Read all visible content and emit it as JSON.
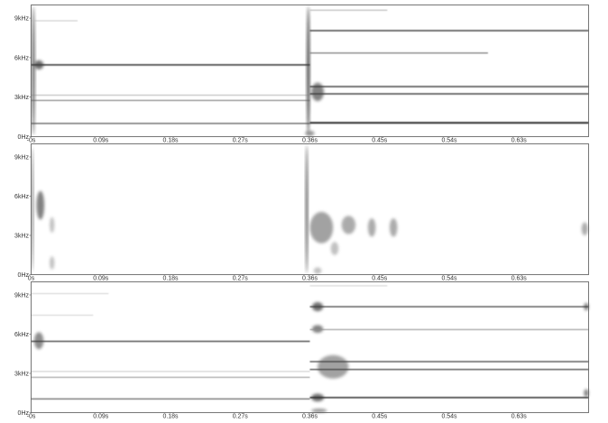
{
  "chart_data": [
    {
      "type": "heatmap",
      "name": "spectrogram-top",
      "x_ticks": [
        "-0s",
        "0.09s",
        "0.18s",
        "0.27s",
        "0.36s",
        "0.45s",
        "0.54s",
        "0.63s"
      ],
      "x_tick_values": [
        0,
        0.09,
        0.18,
        0.27,
        0.36,
        0.45,
        0.54,
        0.63
      ],
      "y_ticks": [
        "0Hz",
        "3kHz",
        "6kHz",
        "9kHz"
      ],
      "y_tick_values": [
        0,
        3000,
        6000,
        9000
      ],
      "xlim": [
        0,
        0.72
      ],
      "ylim": [
        0,
        10000
      ],
      "bands": [
        {
          "t0": 0.0,
          "t1": 0.36,
          "hz": 5450,
          "intensity": 0.85,
          "thickness": 1.6
        },
        {
          "t0": 0.0,
          "t1": 0.36,
          "hz": 3150,
          "intensity": 0.55,
          "thickness": 0.6
        },
        {
          "t0": 0.0,
          "t1": 0.36,
          "hz": 2750,
          "intensity": 0.7,
          "thickness": 0.9
        },
        {
          "t0": 0.0,
          "t1": 0.36,
          "hz": 1000,
          "intensity": 0.75,
          "thickness": 1.2
        },
        {
          "t0": 0.0,
          "t1": 0.06,
          "hz": 8800,
          "intensity": 0.3,
          "thickness": 0.8
        },
        {
          "t0": 0.36,
          "t1": 0.72,
          "hz": 8050,
          "intensity": 0.85,
          "thickness": 1.4
        },
        {
          "t0": 0.36,
          "t1": 0.59,
          "hz": 6350,
          "intensity": 0.6,
          "thickness": 1.2
        },
        {
          "t0": 0.36,
          "t1": 0.72,
          "hz": 3800,
          "intensity": 0.85,
          "thickness": 1.4
        },
        {
          "t0": 0.36,
          "t1": 0.72,
          "hz": 3250,
          "intensity": 0.85,
          "thickness": 1.4
        },
        {
          "t0": 0.36,
          "t1": 0.72,
          "hz": 1050,
          "intensity": 0.9,
          "thickness": 2.0
        },
        {
          "t0": 0.36,
          "t1": 0.46,
          "hz": 9600,
          "intensity": 0.3,
          "thickness": 1.2
        }
      ],
      "blobs": [
        {
          "t": 0.003,
          "hz": 5000,
          "w": 0.004,
          "h": 9800,
          "intensity": 0.7
        },
        {
          "t": 0.01,
          "hz": 5450,
          "w": 0.012,
          "h": 700,
          "intensity": 0.7
        },
        {
          "t": 0.358,
          "hz": 5000,
          "w": 0.004,
          "h": 9800,
          "intensity": 0.85
        },
        {
          "t": 0.37,
          "hz": 3400,
          "w": 0.016,
          "h": 1400,
          "intensity": 0.6
        },
        {
          "t": 0.36,
          "hz": 250,
          "w": 0.012,
          "h": 400,
          "intensity": 0.5
        }
      ]
    },
    {
      "type": "heatmap",
      "name": "spectrogram-middle",
      "x_ticks": [
        "0s",
        "0.09s",
        "0.18s",
        "0.27s",
        "0.36s",
        "0.45s",
        "0.54s",
        "0.63s"
      ],
      "x_tick_values": [
        0,
        0.09,
        0.18,
        0.27,
        0.36,
        0.45,
        0.54,
        0.63
      ],
      "y_ticks": [
        "0Hz",
        "3kHz",
        "6kHz",
        "9kHz"
      ],
      "y_tick_values": [
        0,
        3000,
        6000,
        9000
      ],
      "xlim": [
        0,
        0.72
      ],
      "ylim": [
        0,
        10000
      ],
      "bands": [],
      "blobs": [
        {
          "t": 0.002,
          "hz": 5000,
          "w": 0.002,
          "h": 9500,
          "intensity": 0.65
        },
        {
          "t": 0.012,
          "hz": 5300,
          "w": 0.01,
          "h": 2200,
          "intensity": 0.6
        },
        {
          "t": 0.027,
          "hz": 3800,
          "w": 0.006,
          "h": 1200,
          "intensity": 0.3
        },
        {
          "t": 0.027,
          "hz": 900,
          "w": 0.006,
          "h": 1000,
          "intensity": 0.3
        },
        {
          "t": 0.356,
          "hz": 5000,
          "w": 0.003,
          "h": 9800,
          "intensity": 0.8
        },
        {
          "t": 0.375,
          "hz": 3600,
          "w": 0.03,
          "h": 2400,
          "intensity": 0.45
        },
        {
          "t": 0.392,
          "hz": 2000,
          "w": 0.01,
          "h": 1000,
          "intensity": 0.3
        },
        {
          "t": 0.41,
          "hz": 3800,
          "w": 0.018,
          "h": 1400,
          "intensity": 0.4
        },
        {
          "t": 0.44,
          "hz": 3600,
          "w": 0.01,
          "h": 1400,
          "intensity": 0.4
        },
        {
          "t": 0.468,
          "hz": 3600,
          "w": 0.01,
          "h": 1400,
          "intensity": 0.4
        },
        {
          "t": 0.37,
          "hz": 300,
          "w": 0.01,
          "h": 500,
          "intensity": 0.3
        },
        {
          "t": 0.715,
          "hz": 3500,
          "w": 0.008,
          "h": 1000,
          "intensity": 0.4
        }
      ]
    },
    {
      "type": "heatmap",
      "name": "spectrogram-bottom",
      "x_ticks": [
        "-0s",
        "0.09s",
        "0.18s",
        "0.27s",
        "0.36s",
        "0.45s",
        "0.54s",
        "0.63s"
      ],
      "x_tick_values": [
        0,
        0.09,
        0.18,
        0.27,
        0.36,
        0.45,
        0.54,
        0.63
      ],
      "y_ticks": [
        "0Hz",
        "3kHz",
        "6kHz",
        "9kHz"
      ],
      "y_tick_values": [
        0,
        3000,
        6000,
        9000
      ],
      "xlim": [
        0,
        0.72
      ],
      "ylim": [
        0,
        10000
      ],
      "bands": [
        {
          "t0": 0.0,
          "t1": 0.36,
          "hz": 5450,
          "intensity": 0.85,
          "thickness": 1.3
        },
        {
          "t0": 0.0,
          "t1": 0.36,
          "hz": 3150,
          "intensity": 0.4,
          "thickness": 0.6
        },
        {
          "t0": 0.0,
          "t1": 0.36,
          "hz": 2700,
          "intensity": 0.6,
          "thickness": 0.8
        },
        {
          "t0": 0.0,
          "t1": 0.36,
          "hz": 1050,
          "intensity": 0.75,
          "thickness": 1.1
        },
        {
          "t0": 0.0,
          "t1": 0.1,
          "hz": 9100,
          "intensity": 0.25,
          "thickness": 0.8
        },
        {
          "t0": 0.0,
          "t1": 0.08,
          "hz": 7450,
          "intensity": 0.25,
          "thickness": 0.8
        },
        {
          "t0": 0.36,
          "t1": 0.72,
          "hz": 8100,
          "intensity": 0.85,
          "thickness": 1.2
        },
        {
          "t0": 0.36,
          "t1": 0.72,
          "hz": 6350,
          "intensity": 0.5,
          "thickness": 1.0
        },
        {
          "t0": 0.36,
          "t1": 0.72,
          "hz": 3900,
          "intensity": 0.85,
          "thickness": 1.2
        },
        {
          "t0": 0.36,
          "t1": 0.72,
          "hz": 3300,
          "intensity": 0.85,
          "thickness": 1.2
        },
        {
          "t0": 0.36,
          "t1": 0.72,
          "hz": 1150,
          "intensity": 0.9,
          "thickness": 1.5
        },
        {
          "t0": 0.36,
          "t1": 0.46,
          "hz": 9700,
          "intensity": 0.25,
          "thickness": 0.8
        }
      ],
      "blobs": [
        {
          "t": 0.01,
          "hz": 5500,
          "w": 0.012,
          "h": 1300,
          "intensity": 0.55
        },
        {
          "t": 0.37,
          "hz": 8100,
          "w": 0.014,
          "h": 700,
          "intensity": 0.7
        },
        {
          "t": 0.37,
          "hz": 6400,
          "w": 0.014,
          "h": 600,
          "intensity": 0.6
        },
        {
          "t": 0.39,
          "hz": 3500,
          "w": 0.04,
          "h": 1800,
          "intensity": 0.45
        },
        {
          "t": 0.37,
          "hz": 1150,
          "w": 0.016,
          "h": 600,
          "intensity": 0.7
        },
        {
          "t": 0.372,
          "hz": 150,
          "w": 0.02,
          "h": 300,
          "intensity": 0.5
        },
        {
          "t": 0.717,
          "hz": 8100,
          "w": 0.006,
          "h": 600,
          "intensity": 0.6
        },
        {
          "t": 0.717,
          "hz": 1500,
          "w": 0.006,
          "h": 600,
          "intensity": 0.6
        }
      ]
    }
  ]
}
